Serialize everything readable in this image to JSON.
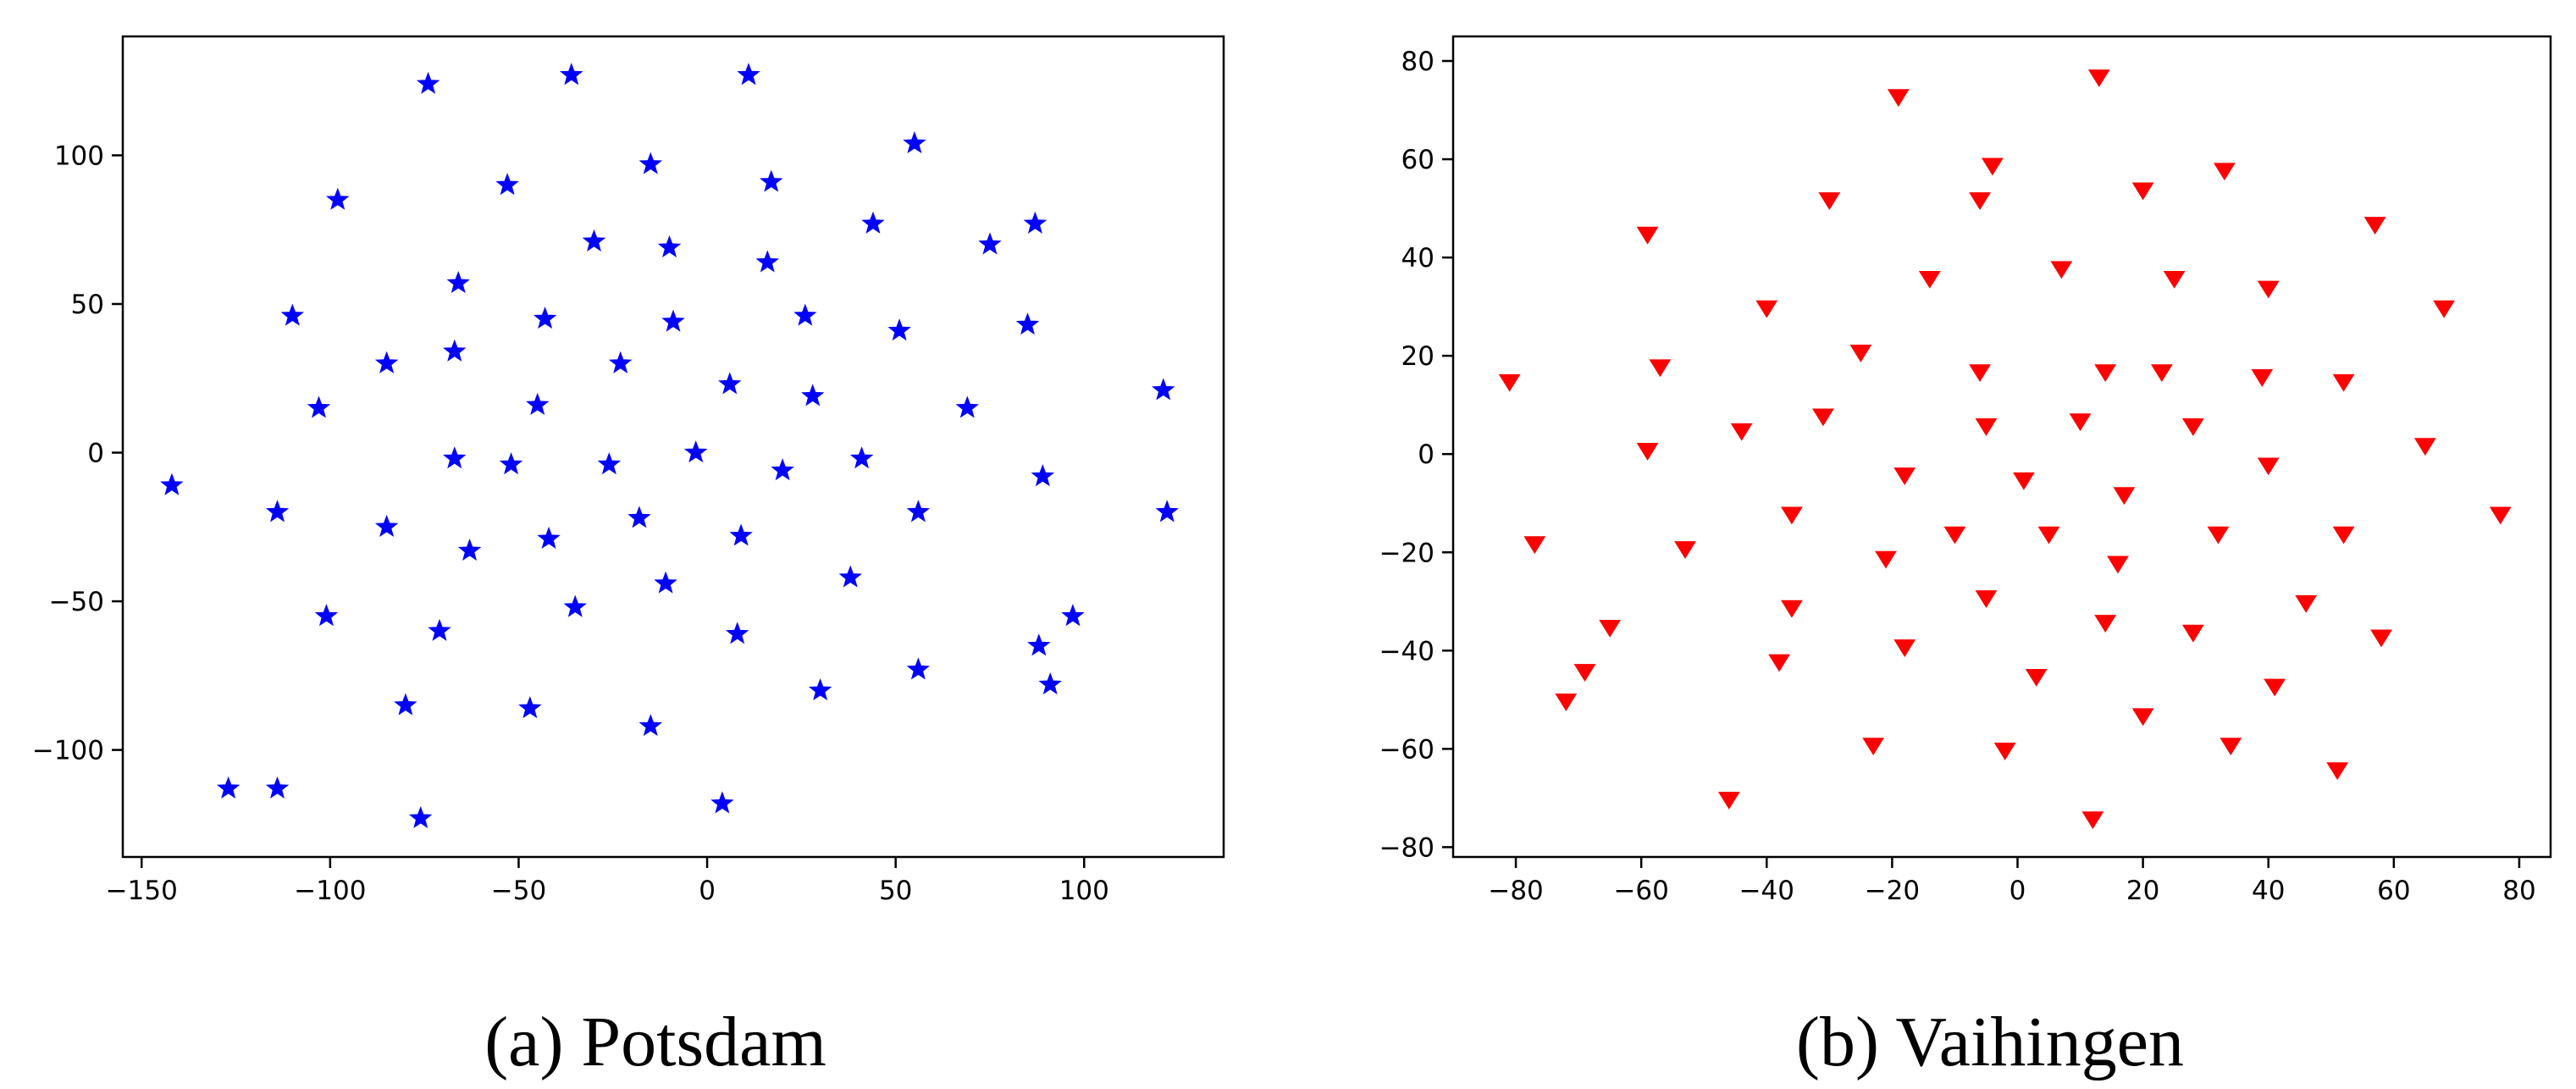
{
  "figure": {
    "captions": [
      "(a) Potsdam",
      "(b) Vaihingen"
    ]
  },
  "chart_data": [
    {
      "type": "scatter",
      "caption": "(a) Potsdam",
      "xlim": [
        -155,
        137
      ],
      "ylim": [
        -136,
        140
      ],
      "xticks": [
        -150,
        -100,
        -50,
        0,
        50,
        100
      ],
      "yticks": [
        -100,
        -50,
        0,
        50,
        100
      ],
      "grid": false,
      "marker": "star",
      "color": "#0000ff",
      "points": [
        [
          -74,
          124
        ],
        [
          -36,
          127
        ],
        [
          11,
          127
        ],
        [
          -53,
          90
        ],
        [
          -98,
          85
        ],
        [
          -15,
          97
        ],
        [
          17,
          91
        ],
        [
          55,
          104
        ],
        [
          -30,
          71
        ],
        [
          -10,
          69
        ],
        [
          16,
          64
        ],
        [
          44,
          77
        ],
        [
          75,
          70
        ],
        [
          87,
          77
        ],
        [
          -110,
          46
        ],
        [
          -66,
          57
        ],
        [
          -43,
          45
        ],
        [
          -9,
          44
        ],
        [
          26,
          46
        ],
        [
          51,
          41
        ],
        [
          85,
          43
        ],
        [
          -85,
          30
        ],
        [
          -67,
          34
        ],
        [
          -23,
          30
        ],
        [
          6,
          23
        ],
        [
          -45,
          16
        ],
        [
          28,
          19
        ],
        [
          -103,
          15
        ],
        [
          69,
          15
        ],
        [
          121,
          21
        ],
        [
          -142,
          -11
        ],
        [
          -67,
          -2
        ],
        [
          -52,
          -4
        ],
        [
          -26,
          -4
        ],
        [
          -3,
          0
        ],
        [
          20,
          -6
        ],
        [
          41,
          -2
        ],
        [
          89,
          -8
        ],
        [
          -114,
          -20
        ],
        [
          -85,
          -25
        ],
        [
          -63,
          -33
        ],
        [
          -42,
          -29
        ],
        [
          -18,
          -22
        ],
        [
          9,
          -28
        ],
        [
          56,
          -20
        ],
        [
          122,
          -20
        ],
        [
          -101,
          -55
        ],
        [
          -71,
          -60
        ],
        [
          -35,
          -52
        ],
        [
          -11,
          -44
        ],
        [
          38,
          -42
        ],
        [
          97,
          -55
        ],
        [
          8,
          -61
        ],
        [
          88,
          -65
        ],
        [
          -80,
          -85
        ],
        [
          -47,
          -86
        ],
        [
          56,
          -73
        ],
        [
          30,
          -80
        ],
        [
          91,
          -78
        ],
        [
          -15,
          -92
        ],
        [
          -127,
          -113
        ],
        [
          -114,
          -113
        ],
        [
          -76,
          -123
        ],
        [
          4,
          -118
        ]
      ]
    },
    {
      "type": "scatter",
      "caption": "(b) Vaihingen",
      "xlim": [
        -90,
        85
      ],
      "ylim": [
        -82,
        85
      ],
      "xticks": [
        -80,
        -60,
        -40,
        -20,
        0,
        20,
        40,
        60,
        80
      ],
      "yticks": [
        -80,
        -60,
        -40,
        -20,
        0,
        20,
        40,
        60,
        80
      ],
      "grid": false,
      "marker": "triangle-down",
      "color": "#ff0000",
      "points": [
        [
          13,
          77
        ],
        [
          -19,
          73
        ],
        [
          -4,
          59
        ],
        [
          33,
          58
        ],
        [
          -6,
          52
        ],
        [
          -30,
          52
        ],
        [
          20,
          54
        ],
        [
          -59,
          45
        ],
        [
          57,
          47
        ],
        [
          7,
          38
        ],
        [
          -14,
          36
        ],
        [
          25,
          36
        ],
        [
          40,
          34
        ],
        [
          68,
          30
        ],
        [
          -40,
          30
        ],
        [
          -25,
          21
        ],
        [
          -81,
          15
        ],
        [
          -57,
          18
        ],
        [
          -6,
          17
        ],
        [
          14,
          17
        ],
        [
          23,
          17
        ],
        [
          39,
          16
        ],
        [
          52,
          15
        ],
        [
          -31,
          8
        ],
        [
          -44,
          5
        ],
        [
          -5,
          6
        ],
        [
          10,
          7
        ],
        [
          28,
          6
        ],
        [
          65,
          2
        ],
        [
          -59,
          1
        ],
        [
          -18,
          -4
        ],
        [
          1,
          -5
        ],
        [
          40,
          -2
        ],
        [
          17,
          -8
        ],
        [
          -36,
          -12
        ],
        [
          -77,
          -18
        ],
        [
          -53,
          -19
        ],
        [
          -10,
          -16
        ],
        [
          5,
          -16
        ],
        [
          32,
          -16
        ],
        [
          52,
          -16
        ],
        [
          77,
          -12
        ],
        [
          -21,
          -21
        ],
        [
          16,
          -22
        ],
        [
          -36,
          -31
        ],
        [
          -5,
          -29
        ],
        [
          46,
          -30
        ],
        [
          -65,
          -35
        ],
        [
          14,
          -34
        ],
        [
          28,
          -36
        ],
        [
          58,
          -37
        ],
        [
          -69,
          -44
        ],
        [
          -38,
          -42
        ],
        [
          -18,
          -39
        ],
        [
          3,
          -45
        ],
        [
          41,
          -47
        ],
        [
          -72,
          -50
        ],
        [
          20,
          -53
        ],
        [
          -23,
          -59
        ],
        [
          34,
          -59
        ],
        [
          -2,
          -60
        ],
        [
          51,
          -64
        ],
        [
          -46,
          -70
        ],
        [
          12,
          -74
        ]
      ]
    }
  ]
}
